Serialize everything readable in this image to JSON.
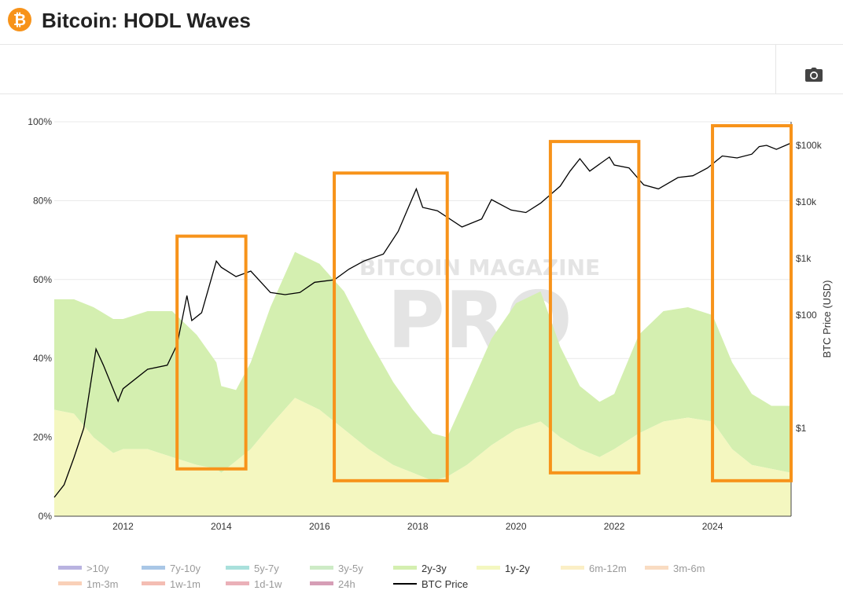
{
  "header": {
    "title": "Bitcoin: HODL Waves",
    "logo_glyph": "₿"
  },
  "toolbar": {
    "camera_icon": "camera-icon"
  },
  "colors": {
    "accent": "#f7931a",
    "highlight_box": "#f7931a",
    "band_1y_2y": "#f4f7c0",
    "band_2y_3y": "#d4efb0",
    "price_line": "#000000"
  },
  "watermark": {
    "line1": "BITCOIN MAGAZINE",
    "line2": "PRO"
  },
  "chart_data": {
    "type": "area",
    "title": "",
    "ylabel_right": "BTC Price (USD)",
    "y_left_ticks": [
      "0%",
      "20%",
      "40%",
      "60%",
      "80%",
      "100%"
    ],
    "y_left_range": [
      0,
      100
    ],
    "y_right_ticks": [
      "$1",
      "$100",
      "$1k",
      "$10k",
      "$100k"
    ],
    "y_right_scale": "log",
    "x_ticks": [
      "2012",
      "2014",
      "2016",
      "2018",
      "2020",
      "2022",
      "2024"
    ],
    "x_range": [
      2010.6,
      2025.6
    ],
    "grid": true,
    "legend_position": "bottom",
    "legend": [
      {
        "name": ">10y",
        "color": "#b9b3e0",
        "dashed": false
      },
      {
        "name": "7y-10y",
        "color": "#a9c7e6",
        "dashed": false
      },
      {
        "name": "5y-7y",
        "color": "#a9e0dc",
        "dashed": false
      },
      {
        "name": "3y-5y",
        "color": "#cdebc6",
        "dashed": false
      },
      {
        "name": "2y-3y",
        "color": "#d4efb0",
        "dashed": false
      },
      {
        "name": "1y-2y",
        "color": "#f4f7c0",
        "dashed": false
      },
      {
        "name": "6m-12m",
        "color": "#fbefc6",
        "dashed": false
      },
      {
        "name": "3m-6m",
        "color": "#f9dcc2",
        "dashed": false
      },
      {
        "name": "1m-3m",
        "color": "#f9d0b8",
        "dashed": false
      },
      {
        "name": "1w-1m",
        "color": "#f4bdb3",
        "dashed": false
      },
      {
        "name": "1d-1w",
        "color": "#eab0b8",
        "dashed": false
      },
      {
        "name": "24h",
        "color": "#d69eb6",
        "dashed": false
      },
      {
        "name": "BTC Price",
        "color": "#000000",
        "dashed": false,
        "line": true
      }
    ],
    "series": [
      {
        "name": "1y-2y",
        "x": [
          2010.6,
          2011.0,
          2011.4,
          2011.8,
          2012.0,
          2012.5,
          2013.0,
          2013.5,
          2013.9,
          2014.0,
          2014.3,
          2014.6,
          2015.0,
          2015.5,
          2016.0,
          2016.5,
          2017.0,
          2017.5,
          2017.9,
          2018.3,
          2018.6,
          2019.0,
          2019.5,
          2020.0,
          2020.5,
          2020.9,
          2021.3,
          2021.7,
          2022.0,
          2022.5,
          2023.0,
          2023.5,
          2024.0,
          2024.4,
          2024.8,
          2025.2,
          2025.6
        ],
        "values": [
          27,
          26,
          20,
          16,
          17,
          17,
          15,
          13,
          12,
          11,
          14,
          17,
          23,
          30,
          27,
          22,
          17,
          13,
          11,
          9,
          10,
          13,
          18,
          22,
          24,
          20,
          17,
          15,
          17,
          21,
          24,
          25,
          24,
          17,
          13,
          12,
          11
        ]
      },
      {
        "name": "2y-3y",
        "x": [
          2010.6,
          2011.0,
          2011.4,
          2011.8,
          2012.0,
          2012.5,
          2013.0,
          2013.5,
          2013.9,
          2014.0,
          2014.3,
          2014.6,
          2015.0,
          2015.5,
          2016.0,
          2016.5,
          2017.0,
          2017.5,
          2017.9,
          2018.3,
          2018.6,
          2019.0,
          2019.5,
          2020.0,
          2020.5,
          2020.9,
          2021.3,
          2021.7,
          2022.0,
          2022.5,
          2023.0,
          2023.5,
          2024.0,
          2024.4,
          2024.8,
          2025.2,
          2025.6
        ],
        "values": [
          28,
          29,
          33,
          34,
          33,
          35,
          37,
          33,
          27,
          22,
          18,
          22,
          30,
          37,
          37,
          35,
          28,
          21,
          16,
          12,
          10,
          18,
          27,
          32,
          33,
          23,
          16,
          14,
          14,
          25,
          28,
          28,
          27,
          22,
          18,
          16,
          17
        ]
      },
      {
        "name": "BTC Price",
        "x": [
          2010.6,
          2010.8,
          2011.0,
          2011.2,
          2011.45,
          2011.6,
          2011.9,
          2012.0,
          2012.5,
          2012.9,
          2013.1,
          2013.3,
          2013.4,
          2013.6,
          2013.9,
          2014.0,
          2014.3,
          2014.6,
          2015.0,
          2015.3,
          2015.6,
          2015.9,
          2016.3,
          2016.6,
          2016.9,
          2017.3,
          2017.6,
          2017.97,
          2018.1,
          2018.4,
          2018.9,
          2019.3,
          2019.5,
          2019.9,
          2020.2,
          2020.5,
          2020.9,
          2021.1,
          2021.3,
          2021.5,
          2021.9,
          2022.0,
          2022.3,
          2022.6,
          2022.9,
          2023.3,
          2023.6,
          2023.9,
          2024.2,
          2024.5,
          2024.8,
          2024.95,
          2025.1,
          2025.3,
          2025.6
        ],
        "values": [
          0.06,
          0.1,
          0.3,
          1.0,
          25,
          13,
          3,
          5,
          11,
          13,
          30,
          220,
          80,
          110,
          900,
          700,
          480,
          600,
          250,
          230,
          250,
          380,
          420,
          650,
          900,
          1200,
          3000,
          17000,
          8000,
          7000,
          3600,
          5000,
          11000,
          7200,
          6500,
          9500,
          19000,
          35000,
          58000,
          35000,
          62000,
          45000,
          40000,
          20000,
          17000,
          27000,
          29000,
          40000,
          65000,
          60000,
          70000,
          95000,
          100000,
          85000,
          110000
        ]
      }
    ],
    "highlight_boxes": [
      {
        "x_start": 2013.1,
        "x_end": 2014.5,
        "pct_top": 71,
        "pct_bottom": 12
      },
      {
        "x_start": 2016.3,
        "x_end": 2018.6,
        "pct_top": 87,
        "pct_bottom": 9
      },
      {
        "x_start": 2020.7,
        "x_end": 2022.5,
        "pct_top": 95,
        "pct_bottom": 11
      },
      {
        "x_start": 2024.0,
        "x_end": 2025.6,
        "pct_top": 99,
        "pct_bottom": 9
      }
    ]
  }
}
